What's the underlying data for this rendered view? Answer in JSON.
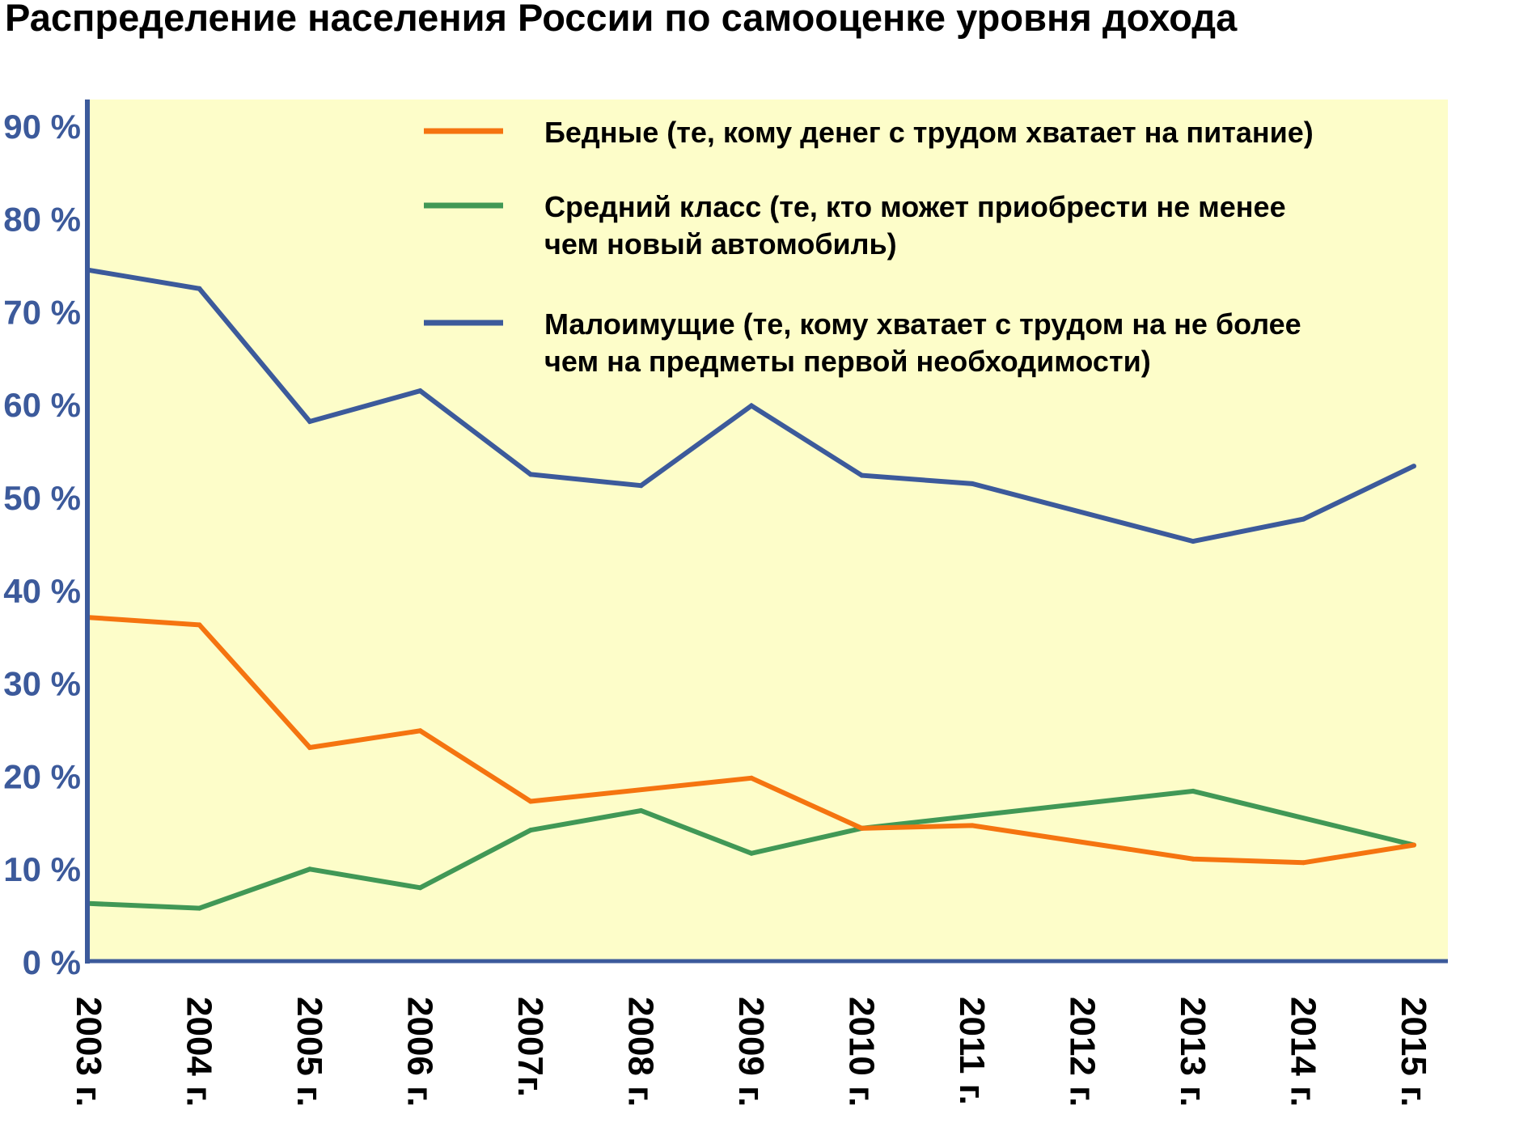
{
  "colors": {
    "background": "#ffffff",
    "plot_bg": "#fdfdc9",
    "axis": "#3c5a9b",
    "tick_text": "#3c5a9b",
    "title_text": "#000000",
    "poor": "#f57410",
    "middle": "#419856",
    "lowincome": "#3c5a9b"
  },
  "chart_data": {
    "type": "line",
    "title": "Распределение населения России по самооценке уровня дохода",
    "xlabel": "",
    "ylabel": "",
    "ylim": [
      0,
      92
    ],
    "y_ticks": [
      "0 %",
      "10 %",
      "20 %",
      "30 %",
      "40 %",
      "50 %",
      "60 %",
      "70 %",
      "80 %",
      "90 %"
    ],
    "categories": [
      "2003 г.",
      "2004 г.",
      "2005 г.",
      "2006 г.",
      "2007г.",
      "2008 г.",
      "2009 г.",
      "2010 г.",
      "2011 г.",
      "2012 г.",
      "2013 г.",
      "2014 г.",
      "2015 г."
    ],
    "grid": false,
    "legend_position": "top-right",
    "series": [
      {
        "name": "Бедные (те, кому денег с трудом хватает на питание)",
        "name_lines": [
          "Бедные (те, кому денег с трудом хватает на питание)"
        ],
        "color": "#f57410",
        "values": [
          37,
          36.2,
          23,
          24.8,
          17.2,
          null,
          19.7,
          14.3,
          14.6,
          null,
          11,
          10.6,
          12.5
        ]
      },
      {
        "name": "Средний класс (те, кто может приобрести не менее чем новый автомобиль)",
        "name_lines": [
          "Средний класс (те, кто может приобрести не менее",
          " чем новый автомобиль)"
        ],
        "color": "#419856",
        "values": [
          6.2,
          5.7,
          9.9,
          7.9,
          14.1,
          16.2,
          11.6,
          14.3,
          null,
          null,
          18.3,
          null,
          12.5
        ]
      },
      {
        "name": "Малоимущие (те, кому хватает с трудом на не более чем на предметы первой необходимости)",
        "name_lines": [
          "Малоимущие (те, кому хватает с трудом на не более",
          " чем на предметы первой необходимости)"
        ],
        "color": "#3c5a9b",
        "values": [
          74.4,
          72.4,
          58.1,
          61.4,
          52.4,
          51.2,
          59.8,
          52.3,
          51.4,
          null,
          45.2,
          47.6,
          53.3
        ]
      }
    ]
  }
}
